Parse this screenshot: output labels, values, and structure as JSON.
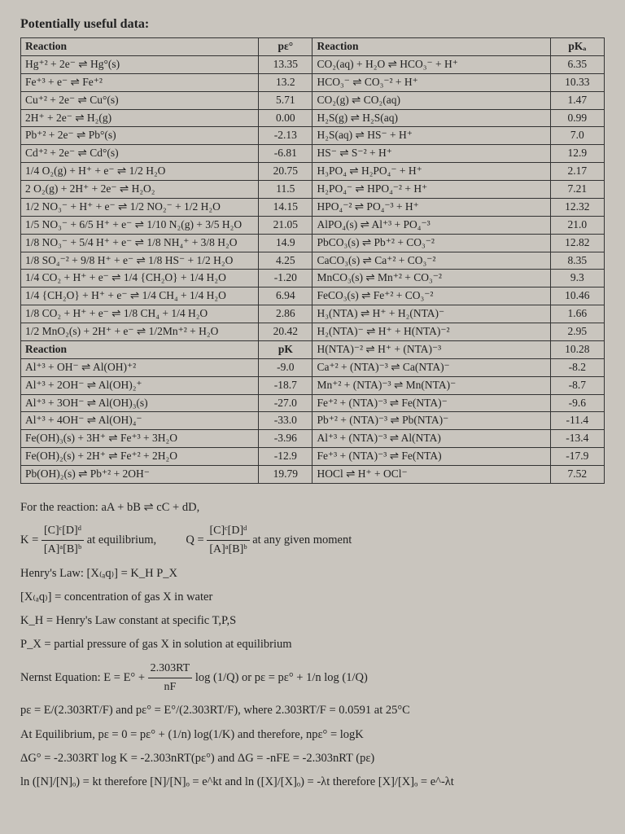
{
  "title": "Potentially useful data:",
  "headers": {
    "reaction": "Reaction",
    "pe0": "pε°",
    "reaction2": "Reaction",
    "pka": "pKₐ",
    "pk": "pK"
  },
  "left_pe": [
    {
      "rx": "Hg⁺² + 2e⁻ ⇌ Hg°(s)",
      "v": "13.35"
    },
    {
      "rx": "Fe⁺³ + e⁻ ⇌ Fe⁺²",
      "v": "13.2"
    },
    {
      "rx": "Cu⁺² + 2e⁻ ⇌ Cu°(s)",
      "v": "5.71"
    },
    {
      "rx": "2H⁺ + 2e⁻ ⇌ H₂(g)",
      "v": "0.00"
    },
    {
      "rx": "Pb⁺² + 2e⁻ ⇌ Pb°(s)",
      "v": "-2.13"
    },
    {
      "rx": "Cd⁺² + 2e⁻ ⇌ Cd°(s)",
      "v": "-6.81"
    },
    {
      "rx": "1/4 O₂(g) + H⁺ + e⁻ ⇌ 1/2 H₂O",
      "v": "20.75"
    },
    {
      "rx": "2 O₂(g) + 2H⁺ + 2e⁻ ⇌ H₂O₂",
      "v": "11.5"
    },
    {
      "rx": "1/2 NO₃⁻ + H⁺ + e⁻ ⇌ 1/2 NO₂⁻ + 1/2 H₂O",
      "v": "14.15"
    },
    {
      "rx": "1/5 NO₃⁻ + 6/5 H⁺ + e⁻ ⇌ 1/10 N₂(g) + 3/5 H₂O",
      "v": "21.05"
    },
    {
      "rx": "1/8 NO₃⁻ + 5/4 H⁺ + e⁻ ⇌ 1/8 NH₄⁺ + 3/8 H₂O",
      "v": "14.9"
    },
    {
      "rx": "1/8 SO₄⁻² + 9/8 H⁺ + e⁻ ⇌ 1/8 HS⁻ + 1/2 H₂O",
      "v": "4.25"
    },
    {
      "rx": "1/4 CO₂ + H⁺ + e⁻ ⇌ 1/4 {CH₂O} + 1/4 H₂O",
      "v": "-1.20"
    },
    {
      "rx": "1/4 {CH₂O} + H⁺ + e⁻ ⇌ 1/4 CH₄ + 1/4 H₂O",
      "v": "6.94"
    },
    {
      "rx": "1/8 CO₂ + H⁺ + e⁻ ⇌ 1/8 CH₄ + 1/4 H₂O",
      "v": "2.86"
    },
    {
      "rx": "1/2 MnO₂(s) + 2H⁺ + e⁻ ⇌ 1/2Mn⁺² + H₂O",
      "v": "20.42"
    }
  ],
  "left_pk": [
    {
      "rx": "Al⁺³ + OH⁻ ⇌ Al(OH)⁺²",
      "v": "-9.0"
    },
    {
      "rx": "Al⁺³ + 2OH⁻ ⇌ Al(OH)₂⁺",
      "v": "-18.7"
    },
    {
      "rx": "Al⁺³ + 3OH⁻ ⇌ Al(OH)₃(s)",
      "v": "-27.0"
    },
    {
      "rx": "Al⁺³ + 4OH⁻ ⇌ Al(OH)₄⁻",
      "v": "-33.0"
    },
    {
      "rx": "Fe(OH)₃(s) + 3H⁺ ⇌ Fe⁺³ + 3H₂O",
      "v": "-3.96"
    },
    {
      "rx": "Fe(OH)₂(s) + 2H⁺ ⇌ Fe⁺² + 2H₂O",
      "v": "-12.9"
    },
    {
      "rx": "Pb(OH)₂(s) ⇌ Pb⁺² + 2OH⁻",
      "v": "19.79"
    }
  ],
  "right": [
    {
      "rx": "CO₂(aq) + H₂O ⇌ HCO₃⁻ + H⁺",
      "v": "6.35"
    },
    {
      "rx": "HCO₃⁻ ⇌ CO₃⁻² + H⁺",
      "v": "10.33"
    },
    {
      "rx": "CO₂(g) ⇌ CO₂(aq)",
      "v": "1.47"
    },
    {
      "rx": "H₂S(g) ⇌ H₂S(aq)",
      "v": "0.99"
    },
    {
      "rx": "H₂S(aq) ⇌ HS⁻ + H⁺",
      "v": "7.0"
    },
    {
      "rx": "HS⁻ ⇌ S⁻² + H⁺",
      "v": "12.9"
    },
    {
      "rx": "H₃PO₄ ⇌ H₂PO₄⁻ + H⁺",
      "v": "2.17"
    },
    {
      "rx": "H₂PO₄⁻ ⇌ HPO₄⁻² + H⁺",
      "v": "7.21"
    },
    {
      "rx": "HPO₄⁻² ⇌ PO₄⁻³ + H⁺",
      "v": "12.32"
    },
    {
      "rx": "AlPO₄(s) ⇌ Al⁺³ + PO₄⁻³",
      "v": "21.0"
    },
    {
      "rx": "PbCO₃(s) ⇌ Pb⁺² + CO₃⁻²",
      "v": "12.82"
    },
    {
      "rx": "CaCO₃(s) ⇌ Ca⁺² + CO₃⁻²",
      "v": "8.35"
    },
    {
      "rx": "MnCO₃(s) ⇌ Mn⁺² + CO₃⁻²",
      "v": "9.3"
    },
    {
      "rx": "FeCO₃(s) ⇌ Fe⁺² + CO₃⁻²",
      "v": "10.46"
    },
    {
      "rx": "H₃(NTA) ⇌ H⁺ + H₂(NTA)⁻",
      "v": "1.66"
    },
    {
      "rx": "H₂(NTA)⁻ ⇌ H⁺ + H(NTA)⁻²",
      "v": "2.95"
    },
    {
      "rx": "H(NTA)⁻² ⇌ H⁺ + (NTA)⁻³",
      "v": "10.28"
    },
    {
      "rx": "Ca⁺² + (NTA)⁻³ ⇌ Ca(NTA)⁻",
      "v": "-8.2"
    },
    {
      "rx": "Mn⁺² + (NTA)⁻³ ⇌ Mn(NTA)⁻",
      "v": "-8.7"
    },
    {
      "rx": "Fe⁺² + (NTA)⁻³ ⇌ Fe(NTA)⁻",
      "v": "-9.6"
    },
    {
      "rx": "Pb⁺² + (NTA)⁻³ ⇌ Pb(NTA)⁻",
      "v": "-11.4"
    },
    {
      "rx": "Al⁺³ + (NTA)⁻³ ⇌ Al(NTA)",
      "v": "-13.4"
    },
    {
      "rx": "Fe⁺³ + (NTA)⁻³ ⇌ Fe(NTA)",
      "v": "-17.9"
    },
    {
      "rx": "HOCl ⇌ H⁺ + OCl⁻",
      "v": "7.52"
    }
  ],
  "formulas": {
    "l1": "For the reaction:  aA + bB ⇌ cC + dD,",
    "l2a": "K = ",
    "l2q": "Q = ",
    "frac_num": "[C]ᶜ[D]ᵈ",
    "frac_den": "[A]ᵃ[B]ᵇ",
    "l2b": " at equilibrium,",
    "l2d": " at any given moment",
    "henry_title": "Henry's Law:  [X₍ₐq₎] = K_H P_X",
    "henry1": "[X₍ₐq₎] = concentration of gas X in water",
    "henry2": "K_H = Henry's Law constant at specific T,P,S",
    "henry3": "P_X = partial pressure of gas X in solution at equilibrium",
    "nernst": "Nernst Equation:   E = E° + ",
    "nernst_num": "2.303RT",
    "nernst_den": "nF",
    "nernst_tail": " log (1/Q)    or    pε = pε° + 1/n log (1/Q)",
    "pe_line": "pε = E/(2.303RT/F)  and  pε° = E°/(2.303RT/F), where 2.303RT/F = 0.0591 at 25°C",
    "equil": "At Equilibrium,   pε = 0 = pε° + (1/n) log(1/K)  and therefore,   npε° = logK",
    "dg": "ΔG° = -2.303RT log K  = -2.303nRT(pε°)  and  ΔG = -nFE = -2.303nRT (pε)",
    "ln": "ln ([N]/[N]ₒ) = kt  therefore [N]/[N]ₒ = e^kt    and  ln ([X]/[X]ₒ) = -λt  therefore [X]/[X]ₒ = e^-λt"
  }
}
